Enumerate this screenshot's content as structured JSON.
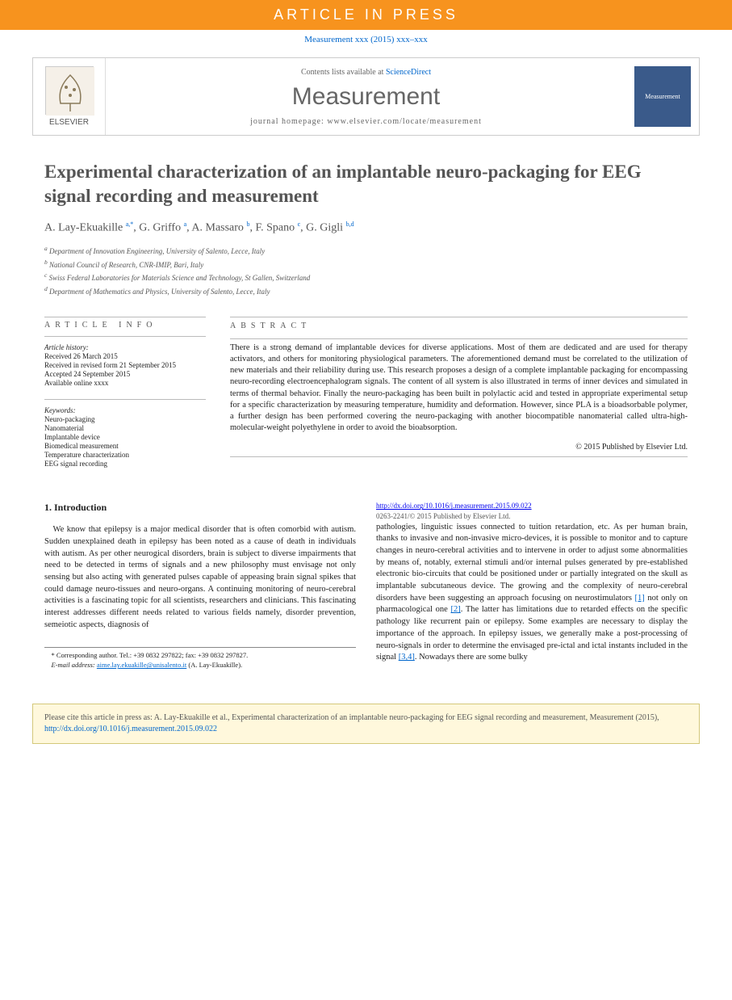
{
  "banner": "ARTICLE IN PRESS",
  "pubinfo": "Measurement xxx (2015) xxx–xxx",
  "header": {
    "contents_prefix": "Contents lists available at ",
    "contents_link": "ScienceDirect",
    "journal": "Measurement",
    "homepage": "journal homepage: www.elsevier.com/locate/measurement",
    "elsevier": "ELSEVIER",
    "cover_label": "Measurement"
  },
  "title": "Experimental characterization of an implantable neuro-packaging for EEG signal recording and measurement",
  "authors_html": "A. Lay-Ekuakille <sup class='sup author-link'>a,*</sup>, G. Griffo <sup class='sup author-link'>a</sup>, A. Massaro <sup class='sup author-link'>b</sup>, F. Spano <sup class='sup author-link'>c</sup>, G. Gigli <sup class='sup author-link'>b,d</sup>",
  "affiliations": [
    "a Department of Innovation Engineering, University of Salento, Lecce, Italy",
    "b National Council of Research, CNR-IMIP, Bari, Italy",
    "c Swiss Federal Laboratories for Materials Science and Technology, St Gallen, Switzerland",
    "d Department of Mathematics and Physics, University of Salento, Lecce, Italy"
  ],
  "article_info": {
    "heading": "article info",
    "history_label": "Article history:",
    "history": [
      "Received 26 March 2015",
      "Received in revised form 21 September 2015",
      "Accepted 24 September 2015",
      "Available online xxxx"
    ],
    "keywords_label": "Keywords:",
    "keywords": [
      "Neuro-packaging",
      "Nanomaterial",
      "Implantable device",
      "Biomedical measurement",
      "Temperature characterization",
      "EEG signal recording"
    ]
  },
  "abstract": {
    "heading": "abstract",
    "text": "There is a strong demand of implantable devices for diverse applications. Most of them are dedicated and are used for therapy activators, and others for monitoring physiological parameters. The aforementioned demand must be correlated to the utilization of new materials and their reliability during use. This research proposes a design of a complete implantable packaging for encompassing neuro-recording electroencephalogram signals. The content of all system is also illustrated in terms of inner devices and simulated in terms of thermal behavior. Finally the neuro-packaging has been built in polylactic acid and tested in appropriate experimental setup for a specific characterization by measuring temperature, humidity and deformation. However, since PLA is a bioadsorbable polymer, a further design has been performed covering the neuro-packaging with another biocompatible nanomaterial called ultra-high-molecular-weight polyethylene in order to avoid the bioabsorption.",
    "copyright": "© 2015 Published by Elsevier Ltd."
  },
  "intro": {
    "heading": "1. Introduction",
    "col1": "We know that epilepsy is a major medical disorder that is often comorbid with autism. Sudden unexplained death in epilepsy has been noted as a cause of death in individuals with autism. As per other neurogical disorders, brain is subject to diverse impairments that need to be detected in terms of signals and a new philosophy must envisage not only sensing but also acting with generated pulses capable of appeasing brain signal spikes that could damage neuro-tissues and neuro-organs. A continuing monitoring of neuro-cerebral activities is a fascinating topic for all scientists, researchers and clinicians. This fascinating interest addresses different needs related to various fields namely, disorder prevention, semeiotic aspects, diagnosis of",
    "col2_part1": "pathologies, linguistic issues connected to tuition retardation, etc. As per human brain, thanks to invasive and non-invasive micro-devices, it is possible to monitor and to capture changes in neuro-cerebral activities and to intervene in order to adjust some abnormalities by means of, notably, external stimuli and/or internal pulses generated by pre-established electronic bio-circuits that could be positioned under or partially integrated on the skull as implantable subcutaneous device. The growing and the complexity of neuro-cerebral disorders have been suggesting an approach focusing on neurostimulators ",
    "ref1": "[1]",
    "col2_part2": " not only on pharmacological one ",
    "ref2": "[2]",
    "col2_part3": ". The latter has limitations due to retarded effects on the specific pathology like recurrent pain or epilepsy. Some examples are necessary to display the importance of the approach. In epilepsy issues, we generally make a post-processing of neuro-signals in order to determine the envisaged pre-ictal and ictal instants included in the signal ",
    "ref3": "[3,4]",
    "col2_part4": ". Nowadays there are some bulky"
  },
  "corresp": {
    "star": "* Corresponding author. Tel.: +39 0832 297822; fax: +39 0832 297827.",
    "email_label": "E-mail address: ",
    "email": "aime.lay.ekuakille@unisalento.it",
    "email_suffix": " (A. Lay-Ekuakille)."
  },
  "doi": {
    "url": "http://dx.doi.org/10.1016/j.measurement.2015.09.022",
    "issn": "0263-2241/© 2015 Published by Elsevier Ltd."
  },
  "cite_box": {
    "text_prefix": "Please cite this article in press as: A. Lay-Ekuakille et al., Experimental characterization of an implantable neuro-packaging for EEG signal recording and measurement, Measurement (2015), ",
    "url": "http://dx.doi.org/10.1016/j.measurement.2015.09.022"
  },
  "colors": {
    "banner_bg": "#f7931e",
    "link": "#0066cc",
    "citebox_bg": "#fff8dc",
    "citebox_border": "#d4c87a"
  }
}
